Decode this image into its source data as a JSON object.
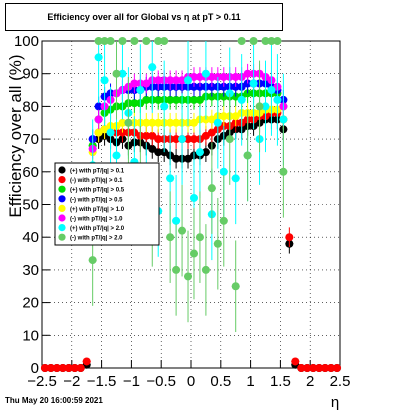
{
  "chart_data": {
    "type": "scatter",
    "title": "Efficiency over all for Global vs   η at pT > 0.11",
    "xlabel": "η",
    "ylabel": "Efficiency over all (%)",
    "xlim": [
      -2.5,
      2.5
    ],
    "ylim": [
      0,
      100
    ],
    "x_ticks": [
      "−2.5",
      "−2",
      "−1.5",
      "−1",
      "−0.5",
      "0",
      "0.5",
      "1",
      "1.5",
      "2",
      "2.5"
    ],
    "y_ticks": [
      "0",
      "10",
      "20",
      "30",
      "40",
      "50",
      "60",
      "70",
      "80",
      "90",
      "100"
    ],
    "grid": true,
    "legend_position": "left-middle",
    "series": [
      {
        "name": "(+) with pT/|q| > 0.1",
        "color": "#000000",
        "x": [
          -2.45,
          -2.35,
          -2.25,
          -2.15,
          -2.05,
          -1.95,
          -1.85,
          -1.75,
          -1.65,
          -1.55,
          -1.45,
          -1.35,
          -1.25,
          -1.15,
          -1.05,
          -0.95,
          -0.85,
          -0.75,
          -0.65,
          -0.55,
          -0.45,
          -0.35,
          -0.25,
          -0.15,
          -0.05,
          0.05,
          0.15,
          0.25,
          0.35,
          0.45,
          0.55,
          0.65,
          0.75,
          0.85,
          0.95,
          1.05,
          1.15,
          1.25,
          1.35,
          1.45,
          1.55,
          1.65,
          1.75,
          1.85,
          1.95,
          2.05,
          2.15,
          2.25,
          2.35,
          2.45
        ],
        "y": [
          0,
          0,
          0,
          0,
          0,
          0,
          0,
          1,
          55,
          70,
          71,
          70,
          69,
          70,
          68,
          69,
          69,
          68,
          67,
          66,
          66,
          65,
          64,
          64,
          64,
          65,
          65,
          66,
          68,
          70,
          71,
          72,
          73,
          73,
          74,
          74,
          75,
          76,
          76,
          76,
          73,
          38,
          1,
          0,
          0,
          0,
          0,
          0,
          0,
          0
        ]
      },
      {
        "name": "(-) with pT/|q| > 0.1",
        "color": "#ff0000",
        "x": [
          -2.45,
          -2.35,
          -2.25,
          -2.15,
          -2.05,
          -1.95,
          -1.85,
          -1.75,
          -1.65,
          -1.55,
          -1.45,
          -1.35,
          -1.25,
          -1.15,
          -1.05,
          -0.95,
          -0.85,
          -0.75,
          -0.65,
          -0.55,
          -0.45,
          -0.35,
          -0.25,
          -0.15,
          -0.05,
          0.05,
          0.15,
          0.25,
          0.35,
          0.45,
          0.55,
          0.65,
          0.75,
          0.85,
          0.95,
          1.05,
          1.15,
          1.25,
          1.35,
          1.45,
          1.55,
          1.65,
          1.75,
          1.85,
          1.95,
          2.05,
          2.15,
          2.25,
          2.35,
          2.45
        ],
        "y": [
          0,
          0,
          0,
          0,
          0,
          0,
          0,
          2,
          50,
          72,
          73,
          72,
          72,
          72,
          72,
          72,
          71,
          71,
          71,
          70,
          70,
          70,
          70,
          70,
          70,
          70,
          70,
          71,
          72,
          73,
          74,
          74,
          75,
          75,
          76,
          76,
          77,
          77,
          78,
          78,
          76,
          40,
          2,
          0,
          0,
          0,
          0,
          0,
          0,
          0
        ]
      },
      {
        "name": "(+) with pT/|q| > 0.5",
        "color": "#00dd00",
        "x": [
          -1.65,
          -1.55,
          -1.45,
          -1.35,
          -1.25,
          -1.15,
          -1.05,
          -0.95,
          -0.85,
          -0.75,
          -0.65,
          -0.55,
          -0.45,
          -0.35,
          -0.25,
          -0.15,
          -0.05,
          0.05,
          0.15,
          0.25,
          0.35,
          0.45,
          0.55,
          0.65,
          0.75,
          0.85,
          0.95,
          1.05,
          1.15,
          1.25,
          1.35,
          1.45,
          1.55
        ],
        "y": [
          68,
          76,
          78,
          79,
          80,
          80,
          81,
          81,
          81,
          82,
          82,
          82,
          82,
          82,
          82,
          82,
          82,
          82,
          82,
          83,
          83,
          83,
          83,
          83,
          83,
          83,
          84,
          84,
          84,
          84,
          84,
          84,
          80
        ]
      },
      {
        "name": "(-) with pT/|q| > 0.5",
        "color": "#0000ff",
        "x": [
          -1.65,
          -1.55,
          -1.45,
          -1.35,
          -1.25,
          -1.15,
          -1.05,
          -0.95,
          -0.85,
          -0.75,
          -0.65,
          -0.55,
          -0.45,
          -0.35,
          -0.25,
          -0.15,
          -0.05,
          0.05,
          0.15,
          0.25,
          0.35,
          0.45,
          0.55,
          0.65,
          0.75,
          0.85,
          0.95,
          1.05,
          1.15,
          1.25,
          1.35,
          1.45,
          1.55
        ],
        "y": [
          70,
          80,
          83,
          84,
          84,
          85,
          85,
          85,
          85,
          86,
          86,
          86,
          86,
          86,
          86,
          86,
          86,
          86,
          86,
          86,
          86,
          86,
          86,
          86,
          86,
          86,
          87,
          87,
          87,
          87,
          86,
          85,
          82
        ]
      },
      {
        "name": "(+) with pT/|q| > 1.0",
        "color": "#ffff00",
        "x": [
          -1.65,
          -1.55,
          -1.45,
          -1.35,
          -1.25,
          -1.15,
          -1.05,
          -0.95,
          -0.85,
          -0.75,
          -0.65,
          -0.55,
          -0.45,
          -0.35,
          -0.25,
          -0.15,
          -0.05,
          0.05,
          0.15,
          0.25,
          0.35,
          0.45,
          0.55,
          0.65,
          0.75,
          0.85,
          0.95,
          1.05,
          1.15,
          1.25,
          1.35,
          1.45,
          1.55
        ],
        "y": [
          66,
          72,
          73,
          74,
          74,
          75,
          75,
          75,
          75,
          75,
          75,
          75,
          75,
          75,
          75,
          75,
          75,
          75,
          76,
          76,
          76,
          77,
          77,
          77,
          77,
          78,
          78,
          78,
          78,
          79,
          79,
          79,
          76
        ]
      },
      {
        "name": "(-) with pT/|q| > 1.0",
        "color": "#ff00ff",
        "x": [
          -1.65,
          -1.55,
          -1.45,
          -1.35,
          -1.25,
          -1.15,
          -1.05,
          -0.95,
          -0.85,
          -0.75,
          -0.65,
          -0.55,
          -0.45,
          -0.35,
          -0.25,
          -0.15,
          -0.05,
          0.05,
          0.15,
          0.25,
          0.35,
          0.45,
          0.55,
          0.65,
          0.75,
          0.85,
          0.95,
          1.05,
          1.15,
          1.25,
          1.35,
          1.45,
          1.55
        ],
        "y": [
          67,
          76,
          80,
          82,
          84,
          85,
          86,
          87,
          87,
          87,
          88,
          88,
          88,
          88,
          88,
          88,
          89,
          89,
          89,
          89,
          89,
          89,
          89,
          89,
          89,
          89,
          90,
          90,
          90,
          89,
          88,
          86,
          80
        ]
      },
      {
        "name": "(+) with pT/|q| > 2.0",
        "color": "#00ffff",
        "x": [
          -1.65,
          -1.55,
          -1.45,
          -1.35,
          -1.25,
          -1.15,
          -1.05,
          -0.95,
          -0.85,
          -0.75,
          -0.65,
          -0.55,
          -0.45,
          -0.35,
          -0.25,
          -0.15,
          -0.05,
          0.05,
          0.15,
          0.25,
          0.35,
          0.45,
          0.55,
          0.65,
          0.75,
          0.85,
          0.95,
          1.05,
          1.15,
          1.25,
          1.35,
          1.45,
          1.55
        ],
        "y": [
          62,
          95,
          88,
          72,
          65,
          90,
          78,
          63,
          85,
          55,
          92,
          48,
          80,
          58,
          45,
          70,
          88,
          52,
          66,
          90,
          47,
          75,
          60,
          84,
          58,
          82,
          65,
          87,
          70,
          80,
          85,
          82,
          76
        ]
      },
      {
        "name": "(-) with pT/|q| > 2.0",
        "color": "#66cc66",
        "x": [
          -1.65,
          -1.55,
          -1.45,
          -1.35,
          -1.25,
          -1.15,
          -1.05,
          -0.95,
          -0.85,
          -0.75,
          -0.65,
          -0.55,
          -0.45,
          -0.35,
          -0.25,
          -0.15,
          -0.05,
          0.05,
          0.15,
          0.25,
          0.35,
          0.45,
          0.55,
          0.65,
          0.75,
          0.85,
          0.95,
          1.05,
          1.15,
          1.25,
          1.35,
          1.45,
          1.55
        ],
        "y": [
          33,
          100,
          100,
          100,
          90,
          100,
          75,
          100,
          60,
          100,
          45,
          100,
          100,
          40,
          30,
          42,
          28,
          35,
          40,
          30,
          55,
          38,
          45,
          70,
          25,
          100,
          65,
          100,
          80,
          100,
          100,
          100,
          60
        ]
      }
    ]
  },
  "footer": {
    "timestamp": "Thu May 20 16:00:59 2021"
  }
}
